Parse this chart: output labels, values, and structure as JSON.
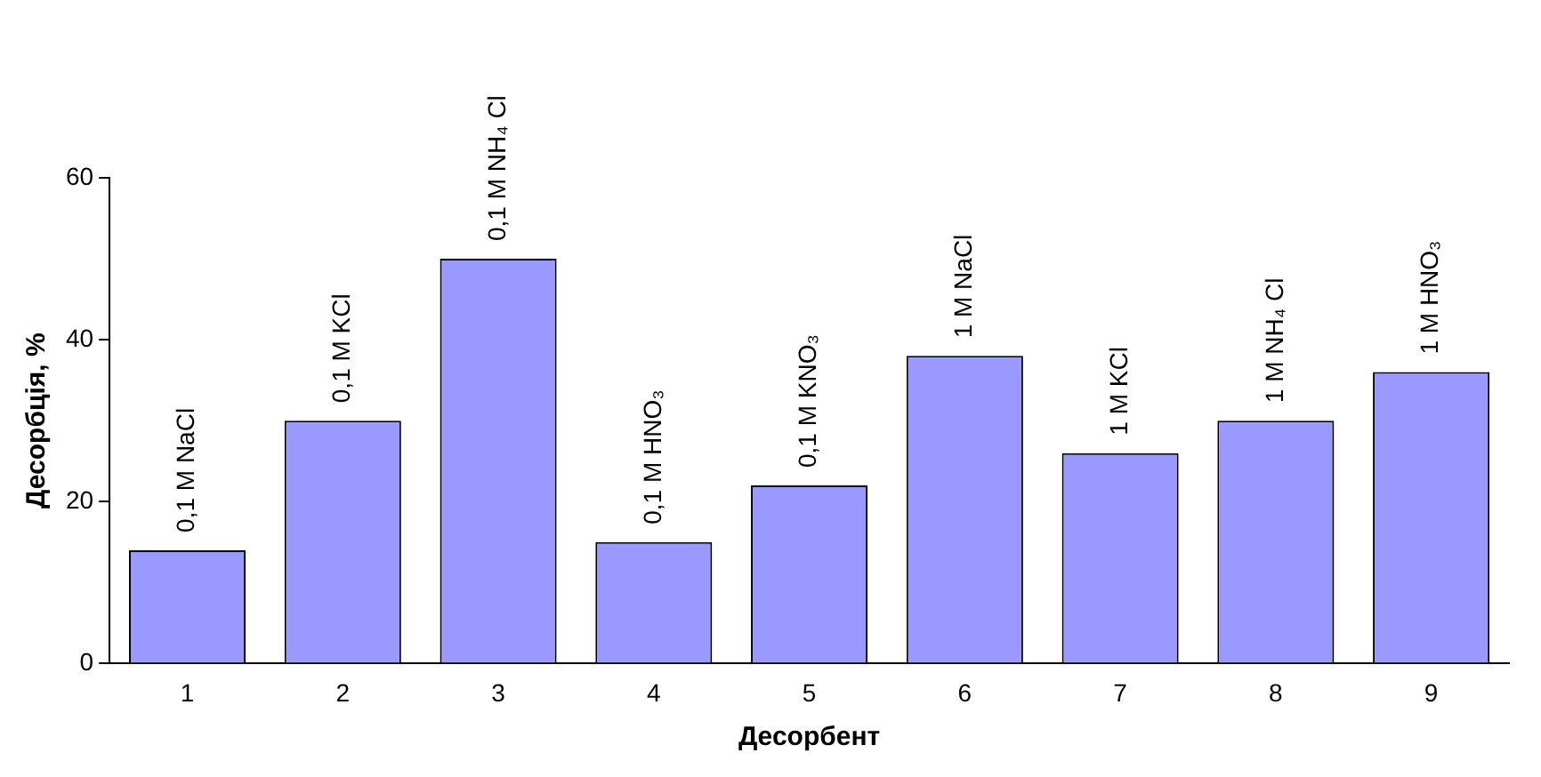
{
  "chart_data": {
    "type": "bar",
    "xlabel": "Десорбент",
    "ylabel": "Десорбція, %",
    "categories": [
      "1",
      "2",
      "3",
      "4",
      "5",
      "6",
      "7",
      "8",
      "9"
    ],
    "values": [
      14,
      30,
      50,
      15,
      22,
      38,
      26,
      30,
      36
    ],
    "color": "#9999ff",
    "ylim": [
      0,
      60
    ],
    "yticks": [
      0,
      20,
      40,
      60
    ],
    "grid": false,
    "legend": false,
    "annotations": [
      {
        "text": "0,1 M NaCl",
        "x": "1",
        "y": 14
      },
      {
        "text": "0,1 M KCl",
        "x": "2",
        "y": 30
      },
      {
        "text": "0,1 M NH₄ Cl",
        "x": "3",
        "y": 50
      },
      {
        "text": "0,1 M HNO₃",
        "x": "4",
        "y": 15
      },
      {
        "text": "0,1 M KNO₃",
        "x": "5",
        "y": 22
      },
      {
        "text": "1 M NaCl",
        "x": "6",
        "y": 38
      },
      {
        "text": "1 M KCl",
        "x": "7",
        "y": 26
      },
      {
        "text": "1 M NH₄ Cl",
        "x": "8",
        "y": 30
      },
      {
        "text": "1 M HNO₃",
        "x": "9",
        "y": 36
      }
    ]
  }
}
